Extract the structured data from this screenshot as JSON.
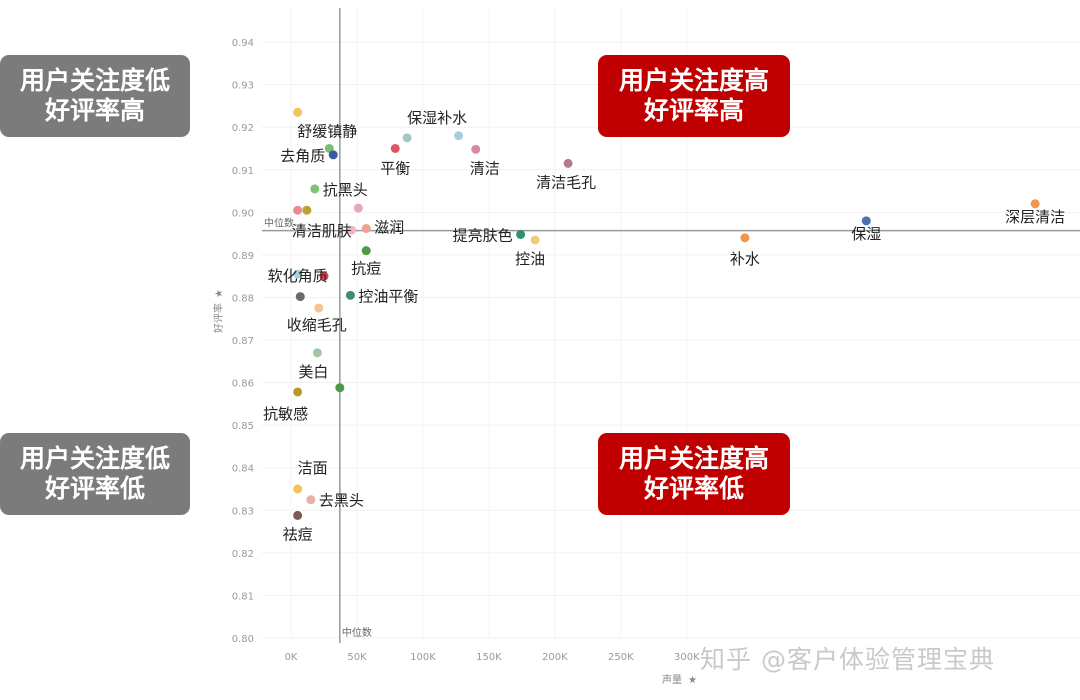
{
  "quadrants": {
    "top_left": [
      "用户关注度低",
      "好评率高"
    ],
    "top_right": [
      "用户关注度高",
      "好评率高"
    ],
    "bottom_left": [
      "用户关注度低",
      "好评率低"
    ],
    "bottom_right": [
      "用户关注度高",
      "好评率低"
    ]
  },
  "watermark": "知乎 @客户体验管理宝典",
  "chart_data": {
    "type": "scatter",
    "xlabel": "声量",
    "ylabel": "好评率",
    "x_ticks": [
      "0K",
      "50K",
      "100K",
      "150K",
      "200K",
      "250K",
      "300K"
    ],
    "y_ticks": [
      "0.80",
      "0.81",
      "0.82",
      "0.83",
      "0.84",
      "0.85",
      "0.86",
      "0.87",
      "0.88",
      "0.89",
      "0.90",
      "0.91",
      "0.92",
      "0.93",
      "0.94"
    ],
    "xlim": [
      -22000,
      598000
    ],
    "ylim": [
      0.8,
      0.948
    ],
    "median_x": 37000,
    "median_y": 0.8957,
    "median_label": "中位数",
    "points": [
      {
        "label": "",
        "x": 5000,
        "y": 0.9235,
        "color": "#f2c45a"
      },
      {
        "label": "舒缓镇静",
        "x": 29000,
        "y": 0.915,
        "color": "#78c06e"
      },
      {
        "label": "去角质",
        "x": 32000,
        "y": 0.9135,
        "color": "#3b5aa6"
      },
      {
        "label": "保湿补水",
        "x": 88000,
        "y": 0.9175,
        "color": "#9fc8c6"
      },
      {
        "label": "平衡",
        "x": 79000,
        "y": 0.915,
        "color": "#e0535f"
      },
      {
        "label": "",
        "x": 127000,
        "y": 0.918,
        "color": "#a8cde0"
      },
      {
        "label": "清洁",
        "x": 140000,
        "y": 0.9148,
        "color": "#d98aa0"
      },
      {
        "label": "清洁毛孔",
        "x": 210000,
        "y": 0.9115,
        "color": "#b57a92"
      },
      {
        "label": "抗黑头",
        "x": 18000,
        "y": 0.9055,
        "color": "#7dc47a"
      },
      {
        "label": "",
        "x": 5000,
        "y": 0.9005,
        "color": "#ec8a92"
      },
      {
        "label": "",
        "x": 12000,
        "y": 0.9005,
        "color": "#b8a23a"
      },
      {
        "label": "",
        "x": 51000,
        "y": 0.901,
        "color": "#e8a8b8"
      },
      {
        "label": "清洁肌肤",
        "x": 46000,
        "y": 0.8958,
        "color": "#f2b5c8"
      },
      {
        "label": "滋润",
        "x": 57000,
        "y": 0.8962,
        "color": "#f0a090"
      },
      {
        "label": "提亮肤色",
        "x": 174000,
        "y": 0.8948,
        "color": "#2f8f6f"
      },
      {
        "label": "控油",
        "x": 185000,
        "y": 0.8935,
        "color": "#f5c97a"
      },
      {
        "label": "补水",
        "x": 344000,
        "y": 0.894,
        "color": "#f0964a"
      },
      {
        "label": "保湿",
        "x": 436000,
        "y": 0.898,
        "color": "#4b74a8"
      },
      {
        "label": "深层清洁",
        "x": 564000,
        "y": 0.902,
        "color": "#f0964a"
      },
      {
        "label": "抗痘",
        "x": 57000,
        "y": 0.891,
        "color": "#4e9a48"
      },
      {
        "label": "软化角质",
        "x": 5000,
        "y": 0.8855,
        "color": "#a8d4e0"
      },
      {
        "label": "",
        "x": 25000,
        "y": 0.885,
        "color": "#d8404a"
      },
      {
        "label": "控油平衡",
        "x": 45000,
        "y": 0.8805,
        "color": "#3b8f6a"
      },
      {
        "label": "",
        "x": 7000,
        "y": 0.8802,
        "color": "#6b6b6b"
      },
      {
        "label": "收缩毛孔",
        "x": 21000,
        "y": 0.8775,
        "color": "#f5c490"
      },
      {
        "label": "美白",
        "x": 20000,
        "y": 0.867,
        "color": "#9cc8a8"
      },
      {
        "label": "",
        "x": 37000,
        "y": 0.8588,
        "color": "#4a9a4a"
      },
      {
        "label": "抗敏感",
        "x": 5000,
        "y": 0.8578,
        "color": "#b89a2a"
      },
      {
        "label": "洁面",
        "x": 5000,
        "y": 0.835,
        "color": "#f2c45a"
      },
      {
        "label": "去黑头",
        "x": 15000,
        "y": 0.8325,
        "color": "#e8b0a8"
      },
      {
        "label": "祛痘",
        "x": 5000,
        "y": 0.8288,
        "color": "#7a5a52"
      }
    ]
  }
}
